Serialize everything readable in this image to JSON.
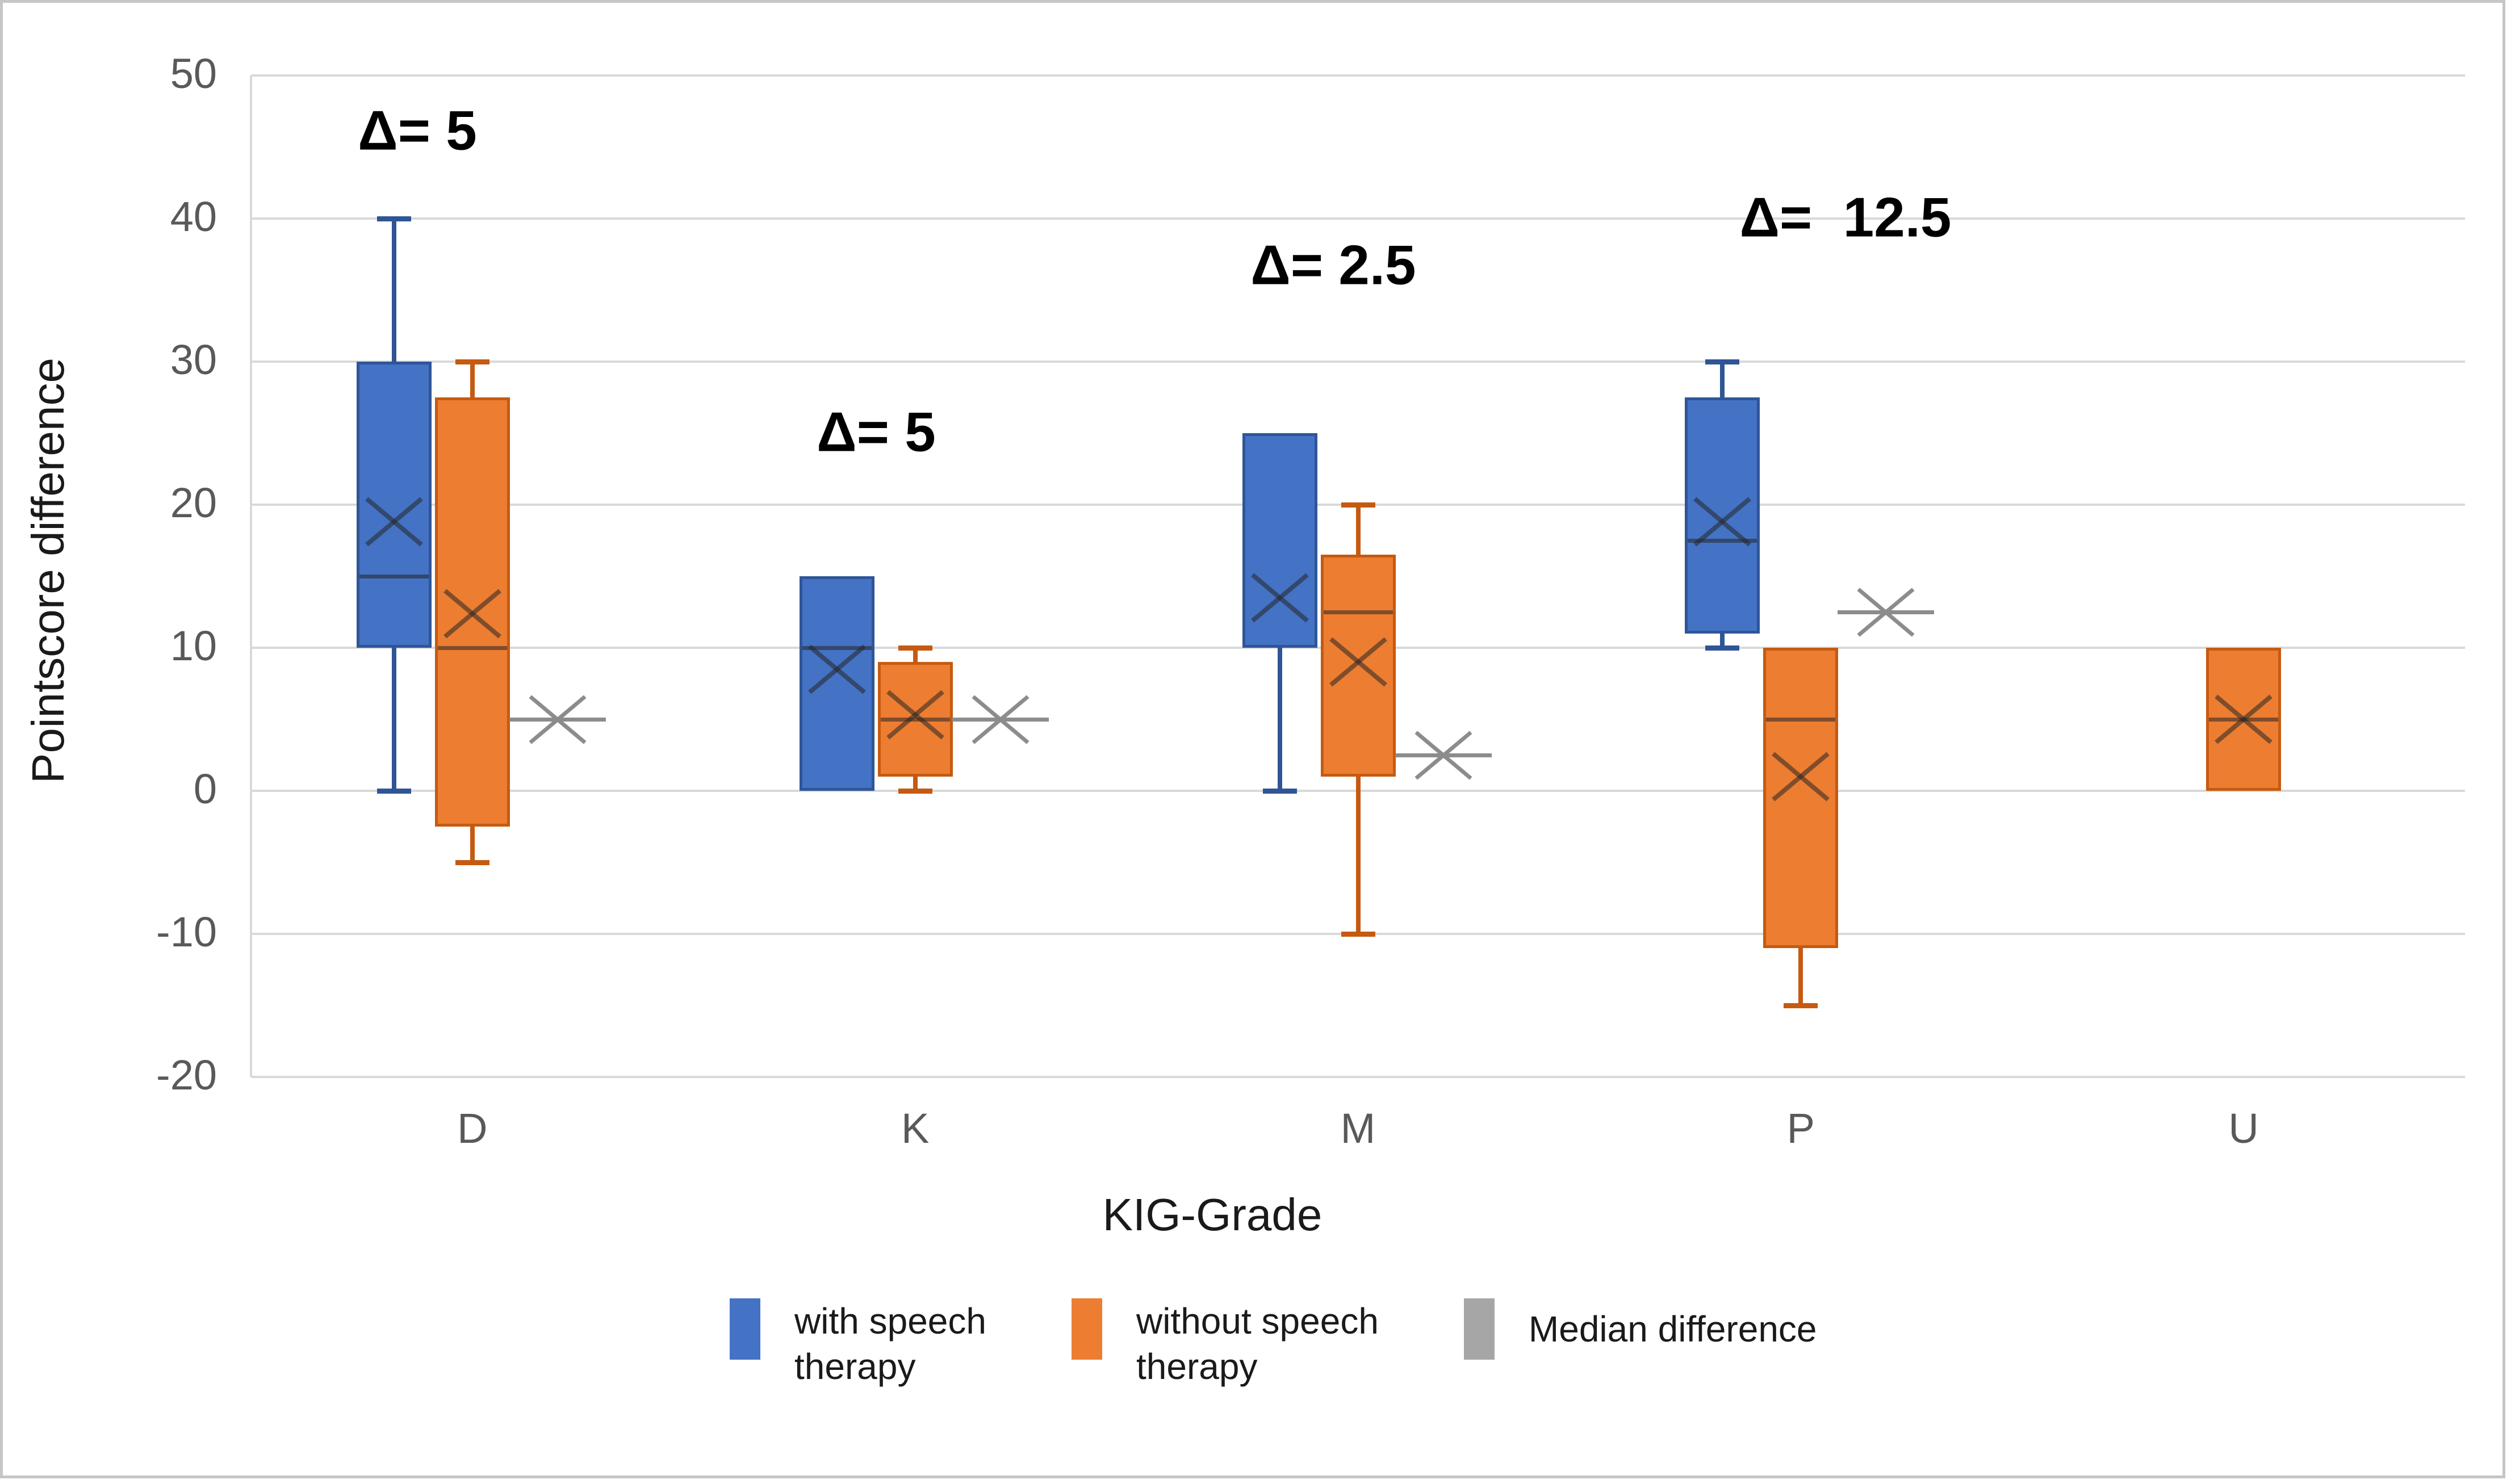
{
  "figure": {
    "background": "#ffffff",
    "border_color": "#c6c6c6",
    "gridline_color": "#d9d9d9"
  },
  "y_axis": {
    "title": "Pointscore difference",
    "ticks": [
      50,
      40,
      30,
      20,
      10,
      0,
      -10,
      -20
    ]
  },
  "x_axis": {
    "title": "KIG-Grade",
    "categories": [
      "D",
      "K",
      "M",
      "P",
      "U"
    ]
  },
  "legend": {
    "items": [
      {
        "label": "with speech\ntherapy",
        "color": "#4472C4",
        "swatch": "blue-box-swatch"
      },
      {
        "label": "without speech\ntherapy",
        "color": "#ED7D31",
        "swatch": "orange-box-swatch"
      },
      {
        "label": "Median difference",
        "color": "#A6A6A6",
        "swatch": "gray-marker-swatch"
      }
    ]
  },
  "chart_data": {
    "type": "boxplot",
    "title": "",
    "xlabel": "KIG-Grade",
    "ylabel": "Pointscore difference",
    "categories": [
      "D",
      "K",
      "M",
      "P",
      "U"
    ],
    "ylim": [
      -20,
      50
    ],
    "ytick_step": 10,
    "grid": true,
    "legend_position": "bottom",
    "series": [
      {
        "name": "with speech therapy",
        "color": "#4472C4",
        "border": "#2F5597",
        "boxes": {
          "D": {
            "low": 0,
            "q1": 10,
            "median": 15,
            "q3": 30,
            "high": 40,
            "mean": 18.8
          },
          "K": {
            "q1": 0,
            "median": 10,
            "q3": 15,
            "mean": 8.5
          },
          "M": {
            "low": 0,
            "q1": 10,
            "median": 10,
            "q3": 25,
            "mean": 13.5
          },
          "P": {
            "low": 10,
            "q1": 11,
            "median": 17.5,
            "q3": 27.5,
            "high": 30,
            "mean": 18.8
          }
        }
      },
      {
        "name": "without speech therapy",
        "color": "#ED7D31",
        "border": "#C55A11",
        "boxes": {
          "D": {
            "low": -5,
            "q1": -2.5,
            "median": 10,
            "q3": 27.5,
            "high": 30,
            "mean": 12.4
          },
          "K": {
            "low": 0,
            "q1": 1,
            "median": 5,
            "q3": 9,
            "high": 10,
            "mean": 5.3
          },
          "M": {
            "low": -10,
            "q1": 1,
            "median": 12.5,
            "q3": 16.5,
            "high": 20,
            "mean": 9
          },
          "P": {
            "low": -15,
            "q1": -11,
            "median": 5,
            "q3": 10,
            "mean": 1
          },
          "U": {
            "q1": 0,
            "median": 5,
            "q3": 10,
            "mean": 5
          }
        }
      }
    ],
    "median_difference": {
      "name": "Median difference",
      "color": "#8C8C8C",
      "values": {
        "D": 5,
        "K": 5,
        "M": 2.5,
        "P": 12.5
      }
    },
    "annotations": [
      {
        "category": "D",
        "text": "Δ= 5",
        "x": 730,
        "y": 225
      },
      {
        "category": "K",
        "text": "Δ= 5",
        "x": 1538,
        "y": 756
      },
      {
        "category": "M",
        "text": "Δ= 2.5",
        "x": 2343,
        "y": 462
      },
      {
        "category": "P",
        "text": "Δ=  12.5",
        "x": 3245,
        "y": 378
      }
    ]
  }
}
